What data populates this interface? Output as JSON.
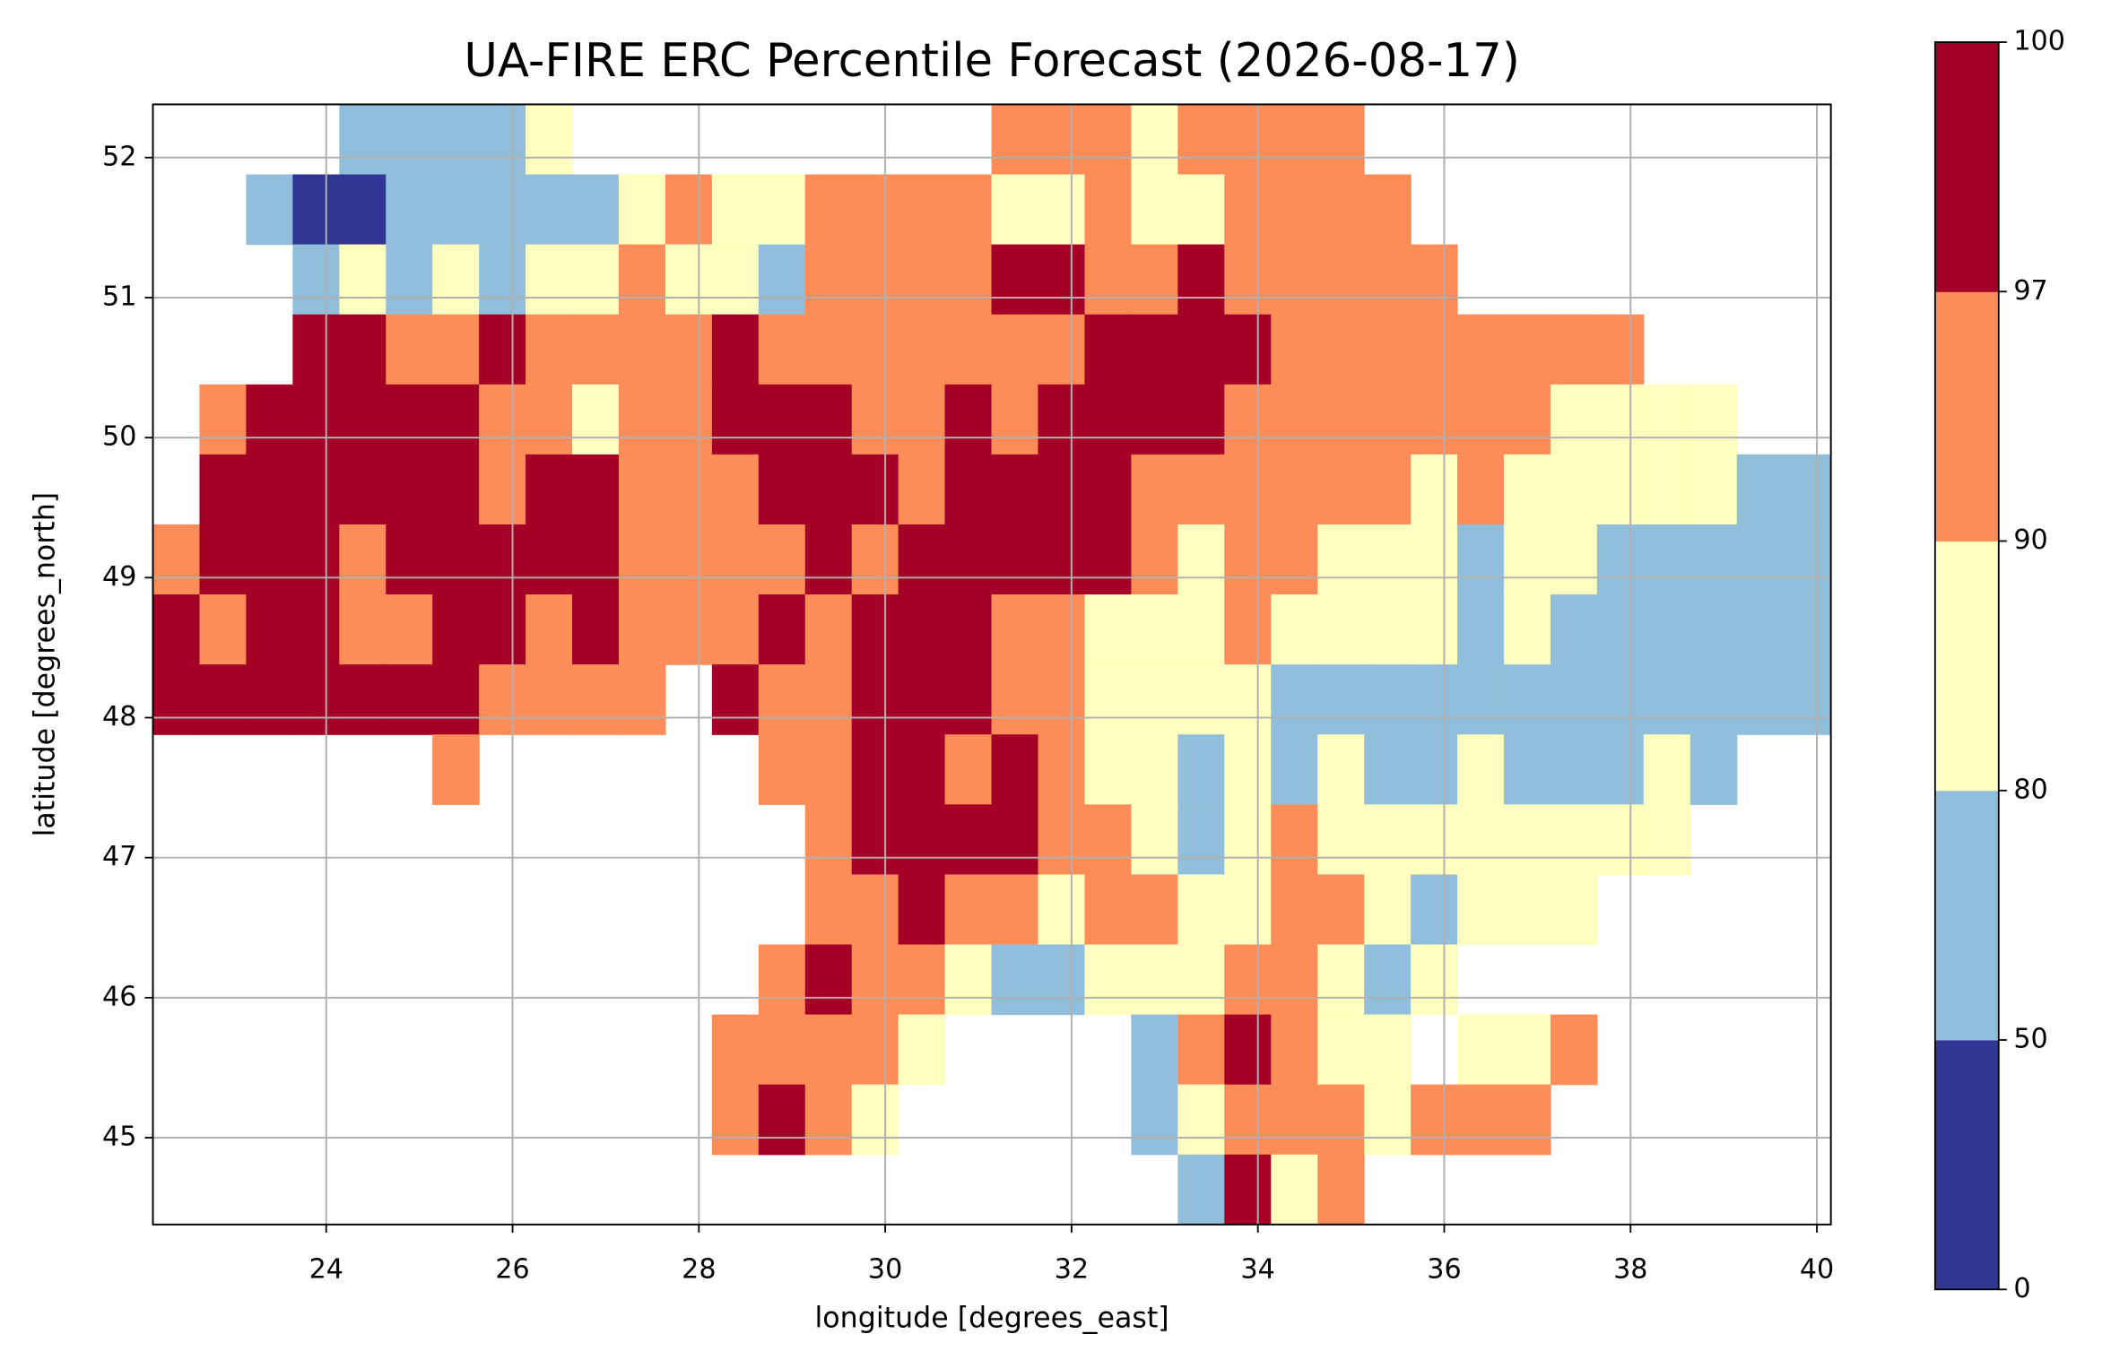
{
  "chart_data": {
    "type": "heatmap",
    "title": "UA-FIRE ERC Percentile Forecast (2026-08-17)",
    "xlabel": "longitude [degrees_east]",
    "ylabel": "latitude [degrees_north]",
    "xlim": [
      22.14,
      40.15
    ],
    "ylim": [
      44.38,
      52.38
    ],
    "xticks": [
      24,
      26,
      28,
      30,
      32,
      34,
      36,
      38,
      40
    ],
    "yticks": [
      45,
      46,
      47,
      48,
      49,
      50,
      51,
      52
    ],
    "grid": true,
    "x": [
      22.39,
      22.89,
      23.39,
      23.89,
      24.39,
      24.89,
      25.39,
      25.89,
      26.39,
      26.89,
      27.39,
      27.89,
      28.39,
      28.89,
      29.39,
      29.89,
      30.39,
      30.89,
      31.39,
      31.89,
      32.39,
      32.89,
      33.39,
      33.89,
      34.39,
      34.89,
      35.39,
      35.89,
      36.39,
      36.89,
      37.39,
      37.89,
      38.39,
      38.89,
      39.39,
      39.89
    ],
    "y": [
      52.13,
      51.63,
      51.13,
      50.63,
      50.13,
      49.63,
      49.13,
      48.63,
      48.13,
      47.63,
      47.13,
      46.63,
      46.13,
      45.63,
      45.13,
      44.63
    ],
    "z": [
      [
        null,
        null,
        null,
        null,
        65,
        65,
        65,
        65,
        85,
        null,
        null,
        null,
        null,
        null,
        null,
        null,
        null,
        null,
        94,
        94,
        94,
        85,
        94,
        94,
        94,
        94,
        null,
        null,
        null,
        null,
        null,
        null,
        null,
        null,
        null,
        null
      ],
      [
        null,
        null,
        65,
        25,
        25,
        65,
        65,
        65,
        65,
        65,
        85,
        94,
        85,
        85,
        94,
        94,
        94,
        94,
        85,
        85,
        94,
        85,
        85,
        94,
        94,
        94,
        94,
        null,
        null,
        null,
        null,
        null,
        null,
        null,
        null,
        null
      ],
      [
        null,
        null,
        null,
        65,
        85,
        65,
        85,
        65,
        85,
        85,
        94,
        85,
        85,
        65,
        94,
        94,
        94,
        94,
        98,
        98,
        94,
        94,
        98,
        94,
        94,
        94,
        94,
        94,
        null,
        null,
        null,
        null,
        null,
        null,
        null,
        null
      ],
      [
        null,
        null,
        null,
        98,
        98,
        94,
        94,
        98,
        94,
        94,
        94,
        94,
        98,
        94,
        94,
        94,
        94,
        94,
        94,
        94,
        98,
        98,
        98,
        98,
        94,
        94,
        94,
        94,
        94,
        94,
        94,
        94,
        null,
        null,
        null,
        null
      ],
      [
        null,
        94,
        98,
        98,
        98,
        98,
        98,
        94,
        94,
        85,
        94,
        94,
        98,
        98,
        98,
        94,
        94,
        98,
        94,
        98,
        98,
        98,
        98,
        94,
        94,
        94,
        94,
        94,
        94,
        94,
        85,
        85,
        85,
        85,
        null,
        null
      ],
      [
        null,
        98,
        98,
        98,
        98,
        98,
        98,
        94,
        98,
        98,
        94,
        94,
        94,
        98,
        98,
        98,
        94,
        98,
        98,
        98,
        98,
        94,
        94,
        94,
        94,
        94,
        94,
        85,
        94,
        85,
        85,
        85,
        85,
        85,
        65,
        65
      ],
      [
        94,
        98,
        98,
        98,
        94,
        98,
        98,
        98,
        98,
        98,
        94,
        94,
        94,
        94,
        98,
        94,
        98,
        98,
        98,
        98,
        98,
        94,
        85,
        94,
        94,
        85,
        85,
        85,
        65,
        85,
        85,
        65,
        65,
        65,
        65,
        65
      ],
      [
        98,
        94,
        98,
        98,
        94,
        94,
        98,
        98,
        94,
        98,
        94,
        94,
        94,
        98,
        94,
        98,
        98,
        98,
        94,
        94,
        85,
        85,
        85,
        94,
        85,
        85,
        85,
        85,
        65,
        85,
        65,
        65,
        65,
        65,
        65,
        65
      ],
      [
        98,
        98,
        98,
        98,
        98,
        98,
        98,
        94,
        94,
        94,
        94,
        null,
        98,
        94,
        94,
        98,
        98,
        98,
        94,
        94,
        85,
        85,
        85,
        85,
        65,
        65,
        65,
        65,
        65,
        65,
        65,
        65,
        65,
        65,
        65,
        65
      ],
      [
        null,
        null,
        null,
        null,
        null,
        null,
        94,
        null,
        null,
        null,
        null,
        null,
        null,
        94,
        94,
        98,
        98,
        94,
        98,
        94,
        85,
        85,
        65,
        85,
        65,
        85,
        65,
        65,
        85,
        65,
        65,
        65,
        85,
        65,
        null,
        null
      ],
      [
        null,
        null,
        null,
        null,
        null,
        null,
        null,
        null,
        null,
        null,
        null,
        null,
        null,
        null,
        94,
        98,
        98,
        98,
        98,
        94,
        94,
        85,
        65,
        85,
        94,
        85,
        85,
        85,
        85,
        85,
        85,
        85,
        85,
        null,
        null,
        null
      ],
      [
        null,
        null,
        null,
        null,
        null,
        null,
        null,
        null,
        null,
        null,
        null,
        null,
        null,
        null,
        94,
        94,
        98,
        94,
        94,
        85,
        94,
        94,
        85,
        85,
        94,
        94,
        85,
        65,
        85,
        85,
        85,
        null,
        null,
        null,
        null,
        null
      ],
      [
        null,
        null,
        null,
        null,
        null,
        null,
        null,
        null,
        null,
        null,
        null,
        null,
        null,
        94,
        98,
        94,
        94,
        85,
        65,
        65,
        85,
        85,
        85,
        94,
        94,
        85,
        65,
        85,
        null,
        null,
        null,
        null,
        null,
        null,
        null,
        null
      ],
      [
        null,
        null,
        null,
        null,
        null,
        null,
        null,
        null,
        null,
        null,
        null,
        null,
        94,
        94,
        94,
        94,
        85,
        null,
        null,
        null,
        null,
        65,
        94,
        98,
        94,
        85,
        85,
        null,
        85,
        85,
        94,
        null,
        null,
        null,
        null,
        null
      ],
      [
        null,
        null,
        null,
        null,
        null,
        null,
        null,
        null,
        null,
        null,
        null,
        null,
        94,
        98,
        94,
        85,
        null,
        null,
        null,
        null,
        null,
        65,
        85,
        94,
        94,
        94,
        85,
        94,
        94,
        94,
        null,
        null,
        null,
        null,
        null,
        null
      ],
      [
        null,
        null,
        null,
        null,
        null,
        null,
        null,
        null,
        null,
        null,
        null,
        null,
        null,
        null,
        null,
        null,
        null,
        null,
        null,
        null,
        null,
        null,
        65,
        98,
        85,
        94,
        null,
        null,
        null,
        null,
        null,
        null,
        null,
        null,
        null,
        null
      ]
    ],
    "colorbar": {
      "ticks": [
        0,
        50,
        80,
        90,
        97,
        100
      ],
      "colors": [
        "#313695",
        "#91bfdb",
        "#ffffbf",
        "#fc8d59",
        "#a50026"
      ]
    }
  }
}
